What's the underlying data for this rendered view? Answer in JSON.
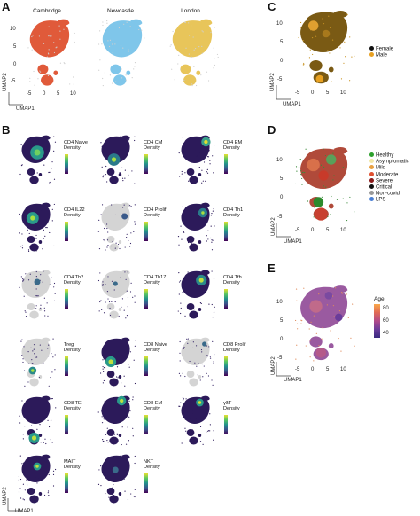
{
  "panels": {
    "A": {
      "label": "A",
      "titles": [
        "Cambridge",
        "Newcastle",
        "London"
      ],
      "colors": [
        "#e05a3a",
        "#7fc6ea",
        "#e8c55a"
      ],
      "yticks": [
        "10",
        "5",
        "0",
        "-5"
      ],
      "xticks": [
        "-5",
        "0",
        "5",
        "10"
      ],
      "xlabel": "UMAP1",
      "ylabel": "UMAP2"
    },
    "B": {
      "label": "B",
      "panels": [
        {
          "name": "CD4 Naive",
          "line2": "Density"
        },
        {
          "name": "CD4 CM",
          "line2": "Density"
        },
        {
          "name": "CD4 EM",
          "line2": "Density"
        },
        {
          "name": "CD4 IL22",
          "line2": "Density"
        },
        {
          "name": "CD4 Prolif",
          "line2": "Density"
        },
        {
          "name": "CD4 Th1",
          "line2": "Density"
        },
        {
          "name": "CD4 Th2",
          "line2": "Density"
        },
        {
          "name": "CD4 Th17",
          "line2": "Density"
        },
        {
          "name": "CD4 Tfh",
          "line2": "Density"
        },
        {
          "name": "Treg",
          "line2": "Density"
        },
        {
          "name": "CD8 Naive",
          "line2": "Density"
        },
        {
          "name": "CD8 Prolif",
          "line2": "Density"
        },
        {
          "name": "CD8 TE",
          "line2": "Density"
        },
        {
          "name": "CD8 EM",
          "line2": "Density"
        },
        {
          "name": "γδT",
          "line2": "Density"
        },
        {
          "name": "MAIT",
          "line2": "Density"
        },
        {
          "name": "NKT",
          "line2": "Density"
        }
      ],
      "xlabel": "UMAP1",
      "ylabel": "UMAP2"
    },
    "C": {
      "label": "C",
      "yticks": [
        "10",
        "5",
        "0",
        "-5"
      ],
      "xticks": [
        "-5",
        "0",
        "5",
        "10"
      ],
      "xlabel": "UMAP1",
      "ylabel": "UMAP2",
      "legend": [
        {
          "name": "Female",
          "color": "#111111"
        },
        {
          "name": "Male",
          "color": "#e8a020"
        }
      ]
    },
    "D": {
      "label": "D",
      "yticks": [
        "10",
        "5",
        "0",
        "-5"
      ],
      "xticks": [
        "-5",
        "0",
        "5",
        "10"
      ],
      "xlabel": "UMAP1",
      "ylabel": "UMAP2",
      "legend": [
        {
          "name": "Healthy",
          "color": "#2ca02c"
        },
        {
          "name": "Asymptomatic",
          "color": "#f2e7a6"
        },
        {
          "name": "Mild",
          "color": "#e8a040"
        },
        {
          "name": "Moderate",
          "color": "#e05030"
        },
        {
          "name": "Severe",
          "color": "#8b1a1a"
        },
        {
          "name": "Critical",
          "color": "#111111"
        },
        {
          "name": "Non-covid",
          "color": "#999999"
        },
        {
          "name": "LPS",
          "color": "#4a7fd4"
        }
      ]
    },
    "E": {
      "label": "E",
      "yticks": [
        "10",
        "5",
        "0",
        "-5"
      ],
      "xticks": [
        "-5",
        "0",
        "5",
        "10"
      ],
      "xlabel": "UMAP1",
      "ylabel": "UMAP2",
      "colorbar_title": "Age",
      "colorbar_ticks": [
        "80",
        "60",
        "40"
      ]
    }
  }
}
